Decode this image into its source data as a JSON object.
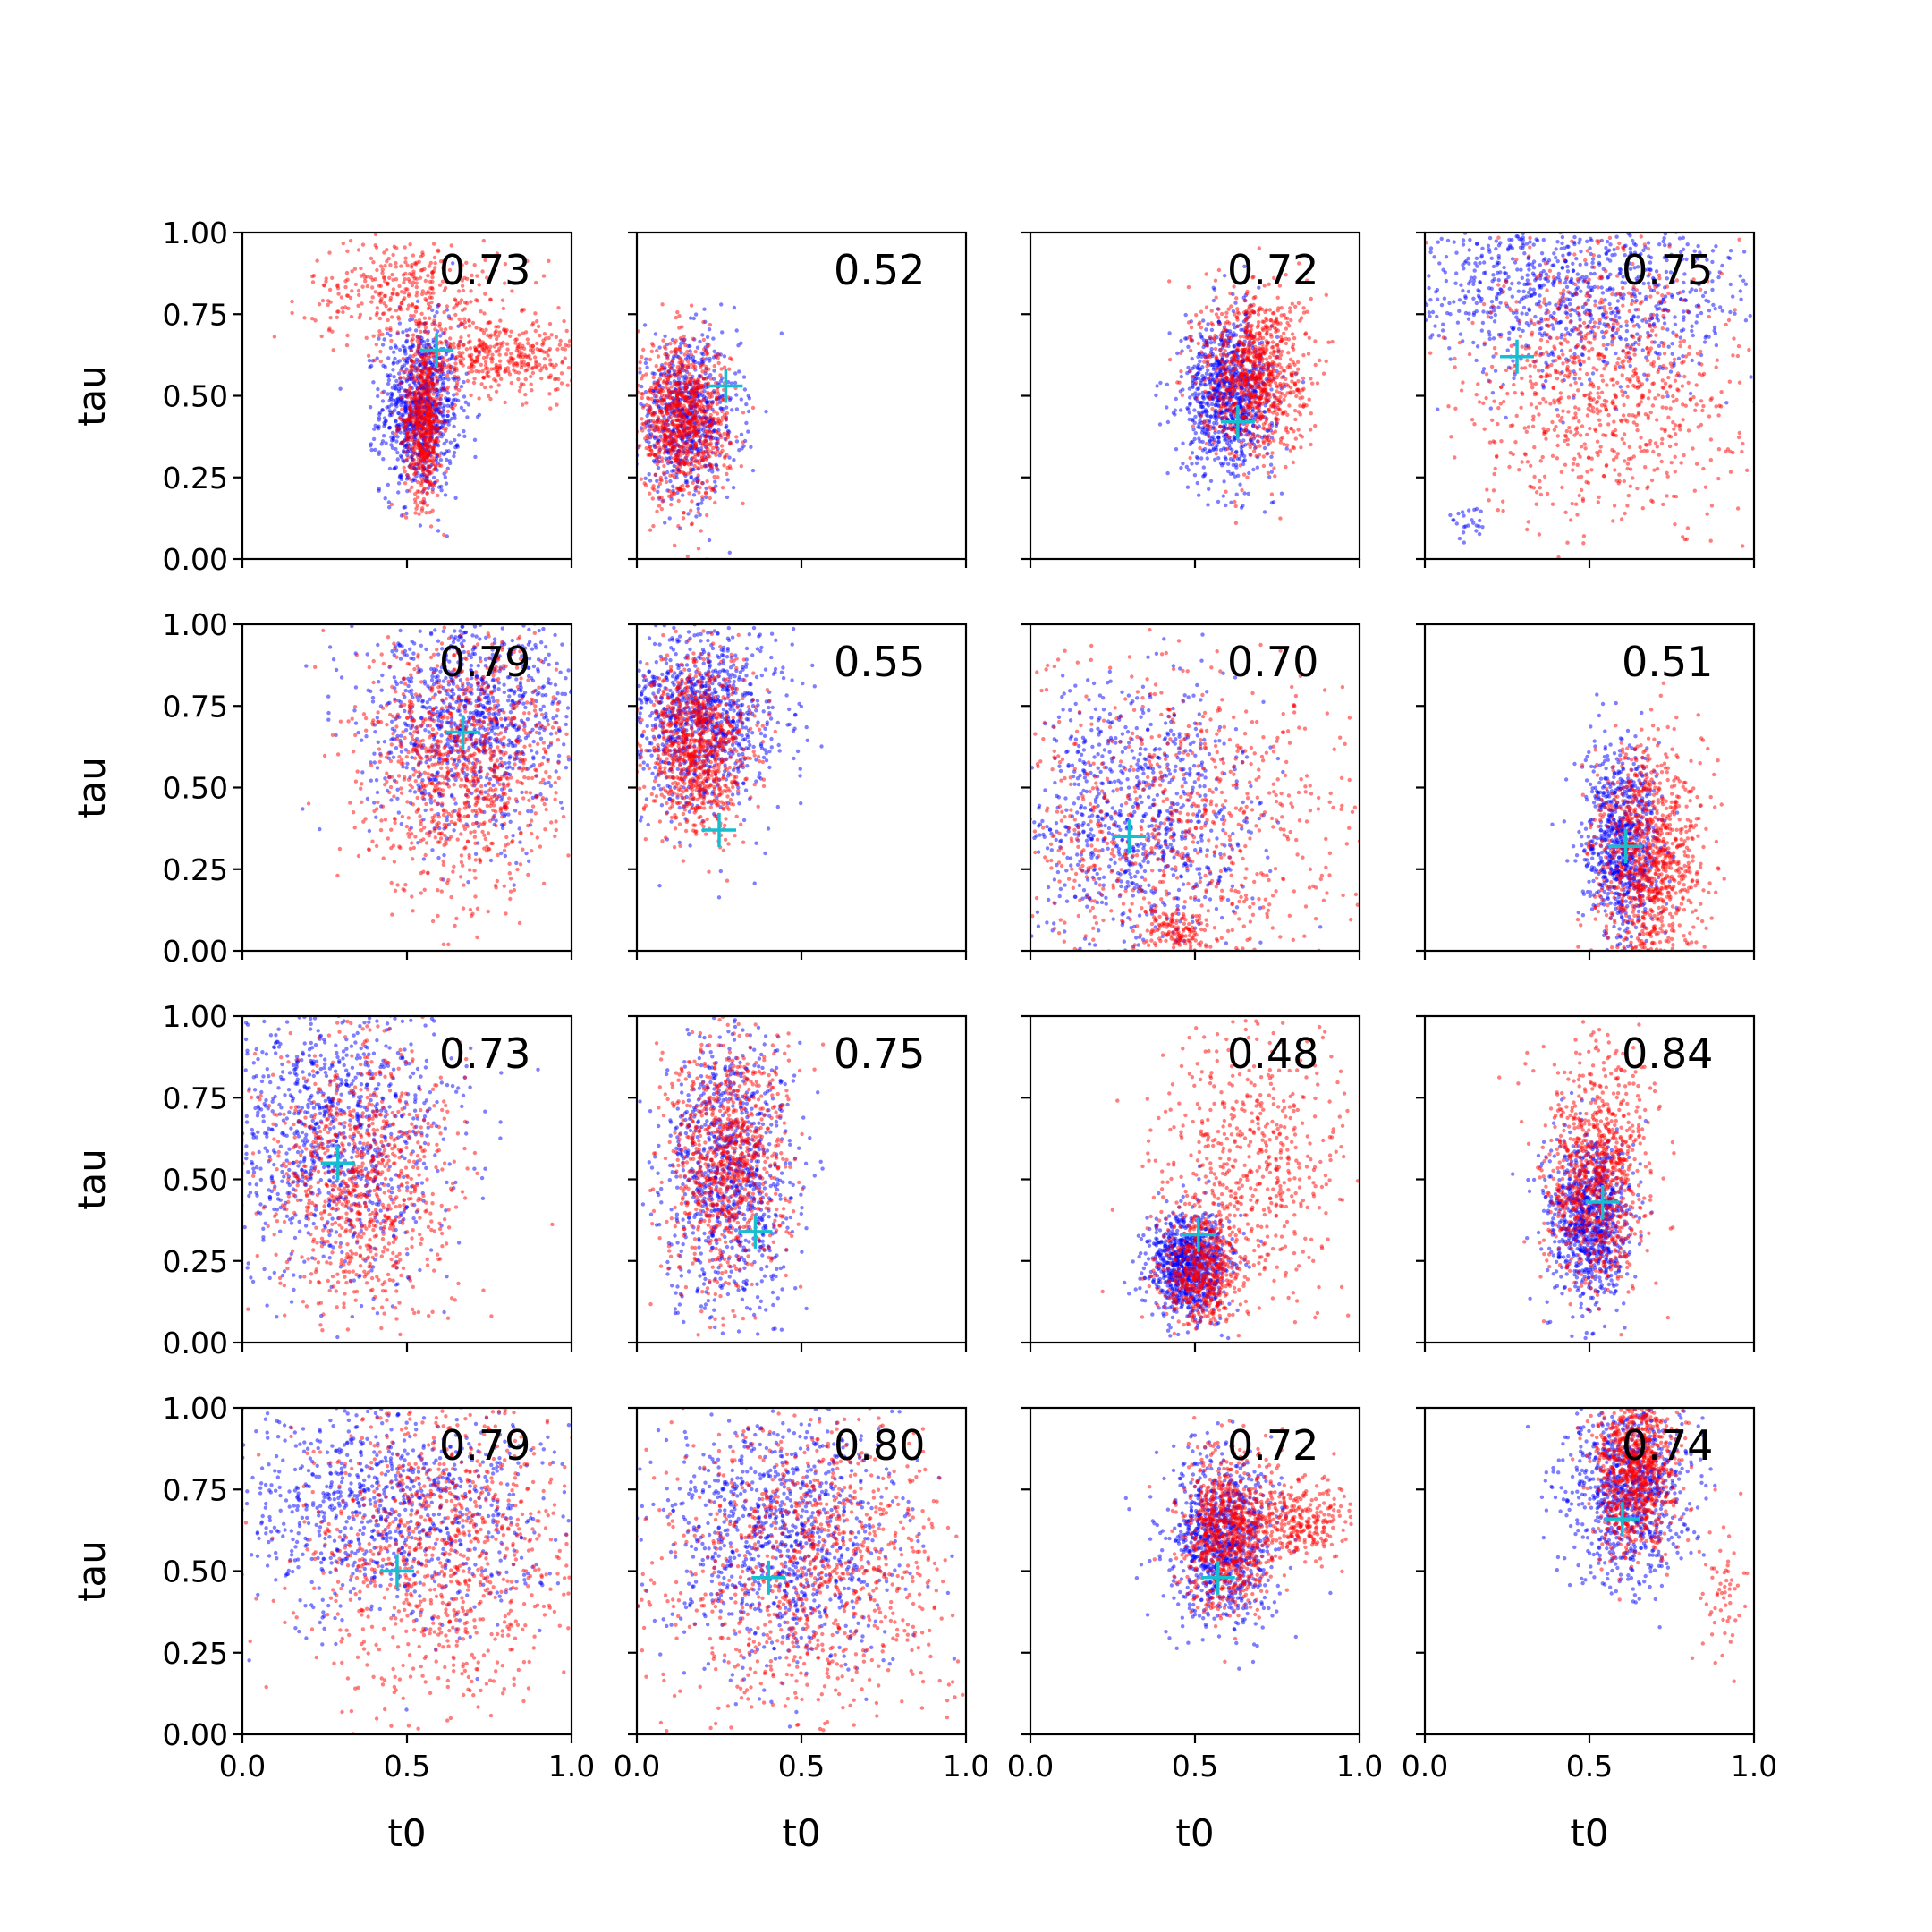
{
  "figure": {
    "rows": 4,
    "cols": 4,
    "xlabel": "t0",
    "ylabel": "tau",
    "xlim": [
      0,
      1
    ],
    "ylim": [
      0,
      1
    ],
    "xticks": [
      "0.0",
      "0.5",
      "1.0"
    ],
    "yticks": [
      "0.00",
      "0.25",
      "0.50",
      "0.75",
      "1.00"
    ],
    "colors": {
      "series_a": "#0000ff",
      "series_b": "#ff0000",
      "marker": "#17becf",
      "frame": "#000000"
    }
  },
  "chart_data": [
    {
      "type": "scatter",
      "annotation": "0.73",
      "marker": [
        0.59,
        0.64
      ],
      "series": [
        {
          "color": "blue",
          "center": [
            0.54,
            0.46
          ],
          "spread": [
            0.06,
            0.13
          ],
          "n": 900
        },
        {
          "color": "red",
          "center": [
            0.55,
            0.42
          ],
          "spread": [
            0.03,
            0.12
          ],
          "n": 600
        },
        {
          "color": "red",
          "center": [
            0.78,
            0.62
          ],
          "spread": [
            0.12,
            0.06
          ],
          "n": 400
        },
        {
          "color": "red",
          "center": [
            0.5,
            0.82
          ],
          "spread": [
            0.15,
            0.08
          ],
          "n": 350
        }
      ]
    },
    {
      "type": "scatter",
      "annotation": "0.52",
      "marker": [
        0.27,
        0.53
      ],
      "series": [
        {
          "color": "blue",
          "center": [
            0.15,
            0.43
          ],
          "spread": [
            0.08,
            0.12
          ],
          "n": 700
        },
        {
          "color": "red",
          "center": [
            0.14,
            0.42
          ],
          "spread": [
            0.07,
            0.12
          ],
          "n": 900
        }
      ]
    },
    {
      "type": "scatter",
      "annotation": "0.72",
      "marker": [
        0.63,
        0.42
      ],
      "series": [
        {
          "color": "blue",
          "center": [
            0.6,
            0.5
          ],
          "spread": [
            0.07,
            0.12
          ],
          "n": 900
        },
        {
          "color": "red",
          "center": [
            0.68,
            0.57
          ],
          "spread": [
            0.08,
            0.13
          ],
          "n": 900
        }
      ]
    },
    {
      "type": "scatter",
      "annotation": "0.75",
      "marker": [
        0.28,
        0.62
      ],
      "series": [
        {
          "color": "blue",
          "center": [
            0.45,
            0.82
          ],
          "spread": [
            0.28,
            0.14
          ],
          "n": 1000
        },
        {
          "color": "red",
          "center": [
            0.55,
            0.55
          ],
          "spread": [
            0.2,
            0.22
          ],
          "n": 900
        },
        {
          "color": "blue",
          "center": [
            0.13,
            0.12
          ],
          "spread": [
            0.03,
            0.04
          ],
          "n": 25
        }
      ]
    },
    {
      "type": "scatter",
      "annotation": "0.79",
      "marker": [
        0.67,
        0.67
      ],
      "series": [
        {
          "color": "blue",
          "center": [
            0.7,
            0.7
          ],
          "spread": [
            0.16,
            0.17
          ],
          "n": 1000
        },
        {
          "color": "red",
          "center": [
            0.67,
            0.58
          ],
          "spread": [
            0.15,
            0.2
          ],
          "n": 1000
        }
      ]
    },
    {
      "type": "scatter",
      "annotation": "0.55",
      "marker": [
        0.25,
        0.37
      ],
      "series": [
        {
          "color": "blue",
          "center": [
            0.2,
            0.72
          ],
          "spread": [
            0.12,
            0.14
          ],
          "n": 1000
        },
        {
          "color": "red",
          "center": [
            0.18,
            0.62
          ],
          "spread": [
            0.08,
            0.13
          ],
          "n": 900
        }
      ]
    },
    {
      "type": "scatter",
      "annotation": "0.70",
      "marker": [
        0.3,
        0.35
      ],
      "series": [
        {
          "color": "blue",
          "center": [
            0.32,
            0.4
          ],
          "spread": [
            0.18,
            0.22
          ],
          "n": 900
        },
        {
          "color": "red",
          "center": [
            0.45,
            0.35
          ],
          "spread": [
            0.3,
            0.28
          ],
          "n": 900
        },
        {
          "color": "red",
          "center": [
            0.45,
            0.06
          ],
          "spread": [
            0.05,
            0.03
          ],
          "n": 120
        }
      ]
    },
    {
      "type": "scatter",
      "annotation": "0.51",
      "marker": [
        0.61,
        0.32
      ],
      "series": [
        {
          "color": "blue",
          "center": [
            0.6,
            0.33
          ],
          "spread": [
            0.06,
            0.14
          ],
          "n": 800
        },
        {
          "color": "red",
          "center": [
            0.68,
            0.28
          ],
          "spread": [
            0.08,
            0.18
          ],
          "n": 1000
        }
      ]
    },
    {
      "type": "scatter",
      "annotation": "0.73",
      "marker": [
        0.29,
        0.55
      ],
      "series": [
        {
          "color": "blue",
          "center": [
            0.28,
            0.65
          ],
          "spread": [
            0.18,
            0.22
          ],
          "n": 1000
        },
        {
          "color": "red",
          "center": [
            0.35,
            0.5
          ],
          "spread": [
            0.14,
            0.22
          ],
          "n": 900
        }
      ]
    },
    {
      "type": "scatter",
      "annotation": "0.75",
      "marker": [
        0.36,
        0.34
      ],
      "series": [
        {
          "color": "blue",
          "center": [
            0.28,
            0.5
          ],
          "spread": [
            0.1,
            0.22
          ],
          "n": 900
        },
        {
          "color": "red",
          "center": [
            0.27,
            0.55
          ],
          "spread": [
            0.09,
            0.2
          ],
          "n": 900
        }
      ]
    },
    {
      "type": "scatter",
      "annotation": "0.48",
      "marker": [
        0.51,
        0.33
      ],
      "series": [
        {
          "color": "blue",
          "center": [
            0.48,
            0.24
          ],
          "spread": [
            0.06,
            0.08
          ],
          "n": 900
        },
        {
          "color": "red",
          "center": [
            0.52,
            0.22
          ],
          "spread": [
            0.06,
            0.08
          ],
          "n": 500
        },
        {
          "color": "red",
          "center": [
            0.68,
            0.55
          ],
          "spread": [
            0.16,
            0.22
          ],
          "n": 600
        }
      ]
    },
    {
      "type": "scatter",
      "annotation": "0.84",
      "marker": [
        0.54,
        0.43
      ],
      "series": [
        {
          "color": "blue",
          "center": [
            0.5,
            0.38
          ],
          "spread": [
            0.06,
            0.12
          ],
          "n": 900
        },
        {
          "color": "red",
          "center": [
            0.52,
            0.52
          ],
          "spread": [
            0.08,
            0.18
          ],
          "n": 900
        }
      ]
    },
    {
      "type": "scatter",
      "annotation": "0.79",
      "marker": [
        0.47,
        0.5
      ],
      "series": [
        {
          "color": "blue",
          "center": [
            0.45,
            0.7
          ],
          "spread": [
            0.25,
            0.18
          ],
          "n": 1000
        },
        {
          "color": "red",
          "center": [
            0.6,
            0.55
          ],
          "spread": [
            0.2,
            0.25
          ],
          "n": 1000
        }
      ]
    },
    {
      "type": "scatter",
      "annotation": "0.80",
      "marker": [
        0.4,
        0.48
      ],
      "series": [
        {
          "color": "blue",
          "center": [
            0.45,
            0.6
          ],
          "spread": [
            0.18,
            0.2
          ],
          "n": 1000
        },
        {
          "color": "red",
          "center": [
            0.52,
            0.5
          ],
          "spread": [
            0.22,
            0.25
          ],
          "n": 1000
        }
      ]
    },
    {
      "type": "scatter",
      "annotation": "0.72",
      "marker": [
        0.57,
        0.48
      ],
      "series": [
        {
          "color": "blue",
          "center": [
            0.58,
            0.6
          ],
          "spread": [
            0.08,
            0.13
          ],
          "n": 900
        },
        {
          "color": "red",
          "center": [
            0.6,
            0.62
          ],
          "spread": [
            0.07,
            0.12
          ],
          "n": 800
        },
        {
          "color": "red",
          "center": [
            0.8,
            0.65
          ],
          "spread": [
            0.08,
            0.06
          ],
          "n": 300
        }
      ]
    },
    {
      "type": "scatter",
      "annotation": "0.74",
      "marker": [
        0.6,
        0.66
      ],
      "series": [
        {
          "color": "blue",
          "center": [
            0.62,
            0.75
          ],
          "spread": [
            0.09,
            0.14
          ],
          "n": 900
        },
        {
          "color": "red",
          "center": [
            0.64,
            0.82
          ],
          "spread": [
            0.06,
            0.12
          ],
          "n": 900
        },
        {
          "color": "red",
          "center": [
            0.9,
            0.45
          ],
          "spread": [
            0.04,
            0.12
          ],
          "n": 60
        }
      ]
    }
  ]
}
